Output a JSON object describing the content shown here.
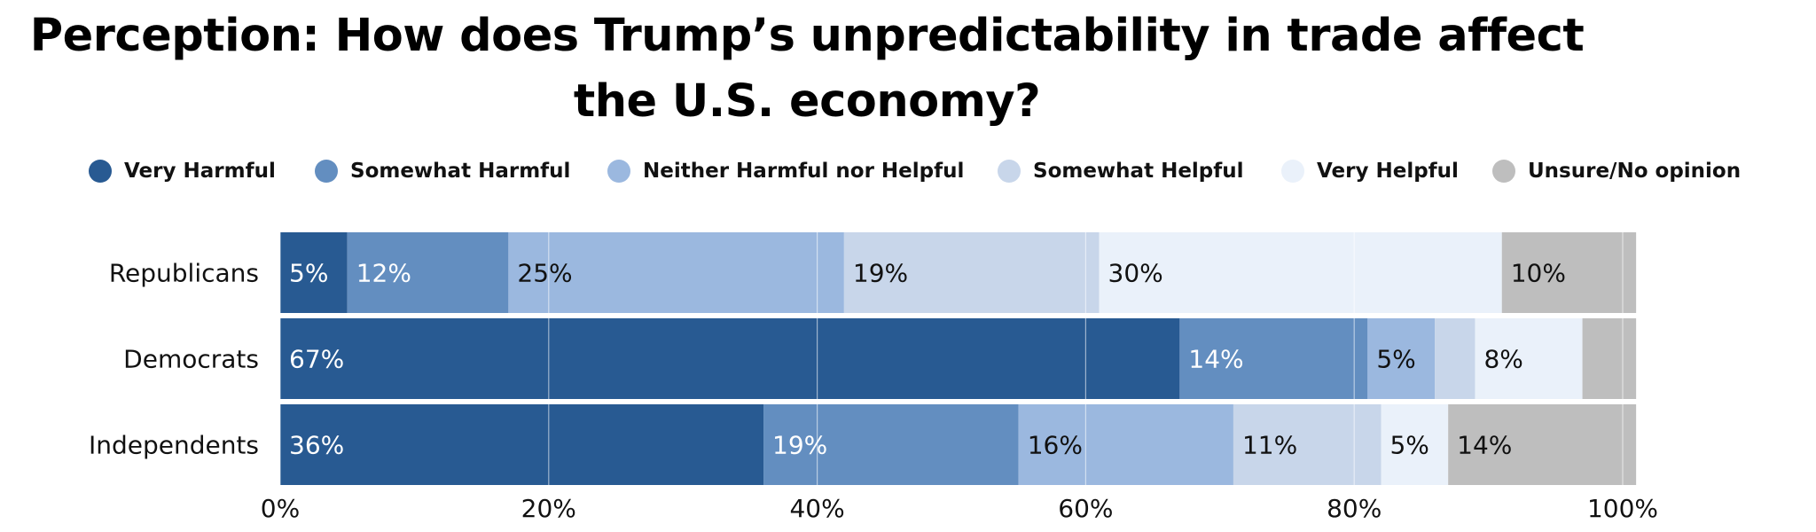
{
  "title": "Perception: How does Trump’s unpredictability in trade affect the U.S. economy?",
  "chart_data": {
    "type": "bar",
    "orientation": "horizontal",
    "stacked": true,
    "categories": [
      "Republicans",
      "Democrats",
      "Independents"
    ],
    "series": [
      {
        "name": "Very Harmful",
        "color": "#285a92",
        "values": [
          5,
          67,
          36
        ],
        "labels": [
          "5%",
          "67%",
          "36%"
        ]
      },
      {
        "name": "Somewhat Harmful",
        "color": "#638ec0",
        "values": [
          12,
          14,
          19
        ],
        "labels": [
          "12%",
          "14%",
          "19%"
        ]
      },
      {
        "name": "Neither Harmful nor Helpful",
        "color": "#9bb8df",
        "values": [
          25,
          5,
          16
        ],
        "labels": [
          "25%",
          "5%",
          "16%"
        ]
      },
      {
        "name": "Somewhat Helpful",
        "color": "#c8d6ea",
        "values": [
          19,
          3,
          11
        ],
        "labels": [
          "19%",
          "",
          "11%"
        ]
      },
      {
        "name": "Very Helpful",
        "color": "#eaf1fa",
        "values": [
          30,
          8,
          5
        ],
        "labels": [
          "30%",
          "8%",
          "5%"
        ]
      },
      {
        "name": "Unsure/No opinion",
        "color": "#bebebe",
        "values": [
          10,
          4,
          14
        ],
        "labels": [
          "10%",
          "",
          "14%"
        ]
      }
    ],
    "xlim": [
      0,
      100
    ],
    "xticks": [
      "0%",
      "20%",
      "40%",
      "60%",
      "80%",
      "100%"
    ],
    "grid": true,
    "legend_position": "top"
  }
}
